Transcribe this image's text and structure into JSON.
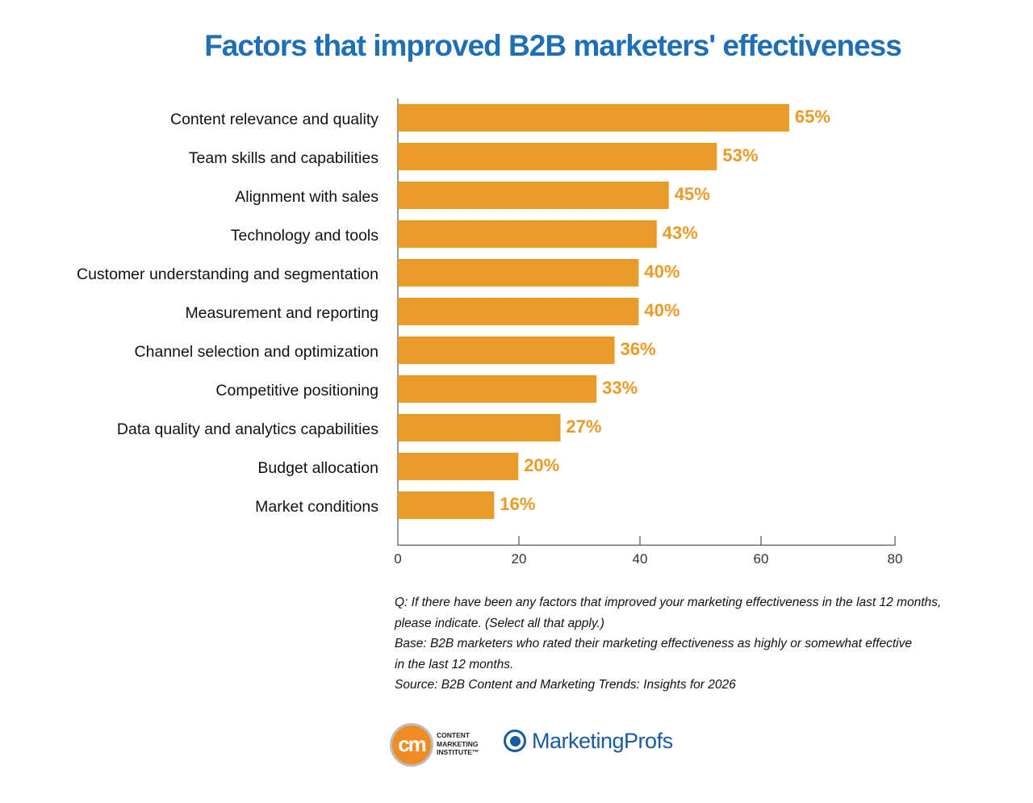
{
  "chart_data": {
    "type": "bar",
    "orientation": "horizontal",
    "title": "Factors that improved B2B marketers' effectiveness",
    "categories": [
      "Content relevance and quality",
      "Team skills and capabilities",
      "Alignment with sales",
      "Technology and tools",
      "Customer understanding and segmentation",
      "Measurement and reporting",
      "Channel selection and optimization",
      "Competitive positioning",
      "Data quality and analytics capabilities",
      "Budget allocation",
      "Market conditions"
    ],
    "values": [
      65,
      53,
      45,
      43,
      40,
      40,
      36,
      33,
      27,
      20,
      16
    ],
    "data_labels": [
      "65%",
      "53%",
      "45%",
      "43%",
      "40%",
      "40%",
      "36%",
      "33%",
      "27%",
      "20%",
      "16%"
    ],
    "xlim": [
      0,
      80
    ],
    "xticks": [
      "0",
      "20",
      "40",
      "60",
      "80"
    ],
    "grid": false,
    "bar_color": "#e99a27",
    "label_color": "#e99a27",
    "title_color": "#1f6fb5"
  },
  "notes": [
    "Q: If there have been any factors that improved your marketing effectiveness in the last 12 months,",
    "please indicate. (Select all that apply.)",
    "Base: B2B marketers who rated their marketing effectiveness as highly or somewhat effective",
    "in the last 12 months.",
    "Source: B2B Content and Marketing Trends: Insights for 2026"
  ],
  "logos": {
    "cmi_mark": "cm",
    "cmi_lines": [
      "CONTENT",
      "MARKETING",
      "INSTITUTE™"
    ],
    "marketingprofs": "MarketingProfs"
  }
}
